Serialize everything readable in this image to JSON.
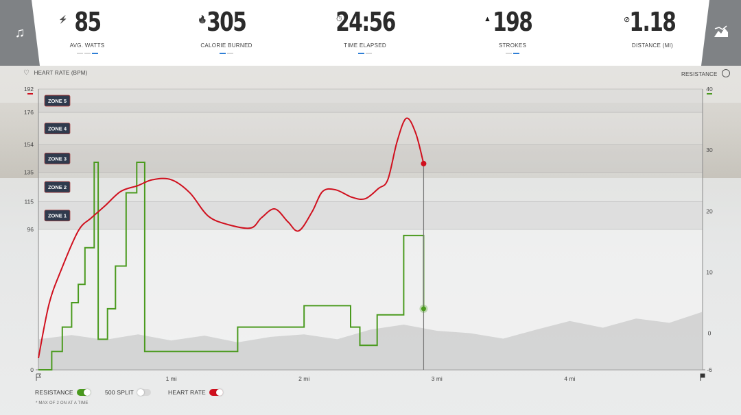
{
  "header": {
    "stats": [
      {
        "value": "85",
        "label": "AVG. WATTS",
        "icon": "bolt-icon",
        "dots": 3,
        "active_dot": 2
      },
      {
        "value": "305",
        "label": "CALORIE BURNED",
        "icon": "flame-icon",
        "dots": 2,
        "active_dot": 0
      },
      {
        "value": "24:56",
        "label": "TIME ELAPSED",
        "icon": "stopwatch-icon",
        "dots": 2,
        "active_dot": 0
      },
      {
        "value": "198",
        "label": "STROKES",
        "icon": "metronome-icon",
        "dots": 2,
        "active_dot": 1
      },
      {
        "value": "1.18",
        "label": "DISTANCE (MI)",
        "icon": "distance-icon",
        "dots": 0,
        "active_dot": -1
      }
    ],
    "left_tab_icon": "music-icon",
    "right_tab_icon": "terrain-chart-icon"
  },
  "chart": {
    "left_title": "HEART RATE (BPM)",
    "right_title": "RESISTANCE",
    "left_icon": "heart-icon",
    "right_icon": "gauge-icon"
  },
  "legend": {
    "items": [
      {
        "label": "RESISTANCE",
        "on": true,
        "color": "#4a9a1e"
      },
      {
        "label": "500 SPLIT",
        "on": false,
        "color": "#d8d8d8"
      },
      {
        "label": "HEART RATE",
        "on": true,
        "color": "#d0101e"
      }
    ],
    "note": "* MAX OF 2 ON AT A TIME"
  },
  "chart_data": {
    "type": "line",
    "xlabel": "",
    "xlim": [
      0,
      5
    ],
    "x_ticks": [
      "1 mi",
      "2 mi",
      "3 mi",
      "4 mi"
    ],
    "x_tick_values": [
      1,
      2,
      3,
      4
    ],
    "current_position": 2.9,
    "y_left": {
      "label": "HEART RATE (BPM)",
      "ylim": [
        0,
        192
      ],
      "ticks": [
        0,
        96,
        115,
        135,
        154,
        176,
        192
      ]
    },
    "y_right": {
      "label": "RESISTANCE",
      "ylim": [
        -6,
        40
      ],
      "ticks": [
        -6,
        0,
        10,
        20,
        30,
        40
      ]
    },
    "zones": [
      {
        "label": "ZONE 5",
        "from": 176,
        "to": 192
      },
      {
        "label": "ZONE 4",
        "from": 154,
        "to": 176
      },
      {
        "label": "ZONE 3",
        "from": 135,
        "to": 154
      },
      {
        "label": "ZONE 2",
        "from": 115,
        "to": 135
      },
      {
        "label": "ZONE 1",
        "from": 96,
        "to": 115
      }
    ],
    "colors": {
      "heart_rate": "#d0101e",
      "resistance": "#4a9a1e",
      "terrain": "#c9c9c9"
    },
    "series": [
      {
        "name": "HEART RATE",
        "axis": "left",
        "color": "#d0101e",
        "x": [
          0,
          0.08,
          0.17,
          0.3,
          0.4,
          0.5,
          0.62,
          0.75,
          0.86,
          1.0,
          1.14,
          1.28,
          1.44,
          1.6,
          1.68,
          1.78,
          1.88,
          1.96,
          2.06,
          2.14,
          2.24,
          2.36,
          2.46,
          2.56,
          2.63,
          2.7,
          2.77,
          2.84,
          2.9
        ],
        "values": [
          8,
          45,
          68,
          95,
          104,
          112,
          122,
          126,
          130,
          130,
          121,
          105,
          99,
          97,
          104,
          110,
          101,
          95,
          108,
          122,
          123,
          118,
          117,
          124,
          130,
          156,
          172,
          162,
          141
        ]
      },
      {
        "name": "RESISTANCE",
        "axis": "right",
        "color": "#4a9a1e",
        "x": [
          0,
          0.1,
          0.18,
          0.25,
          0.3,
          0.35,
          0.42,
          0.45,
          0.52,
          0.58,
          0.66,
          0.74,
          0.8,
          1.5,
          2.0,
          2.35,
          2.42,
          2.55,
          2.75,
          2.9
        ],
        "values": [
          -6,
          -3,
          1,
          5,
          8,
          14,
          28,
          -1,
          4,
          11,
          23,
          28,
          -3,
          1,
          4.5,
          1,
          -2,
          3,
          16,
          4
        ]
      },
      {
        "name": "TERRAIN",
        "axis": "right",
        "color": "#c9c9c9",
        "x": [
          0,
          0.25,
          0.5,
          0.75,
          1.0,
          1.25,
          1.5,
          1.75,
          2.0,
          2.25,
          2.5,
          2.75,
          3.0,
          3.25,
          3.5,
          3.75,
          4.0,
          4.25,
          4.5,
          4.75,
          5.0
        ],
        "values": [
          -1,
          -0.3,
          -1.1,
          -0.2,
          -1.2,
          -0.4,
          -1.5,
          -0.6,
          -0.2,
          -1.0,
          0.6,
          1.4,
          0.4,
          0.0,
          -0.9,
          0.6,
          2.0,
          0.9,
          2.4,
          1.7,
          3.5
        ]
      }
    ]
  }
}
